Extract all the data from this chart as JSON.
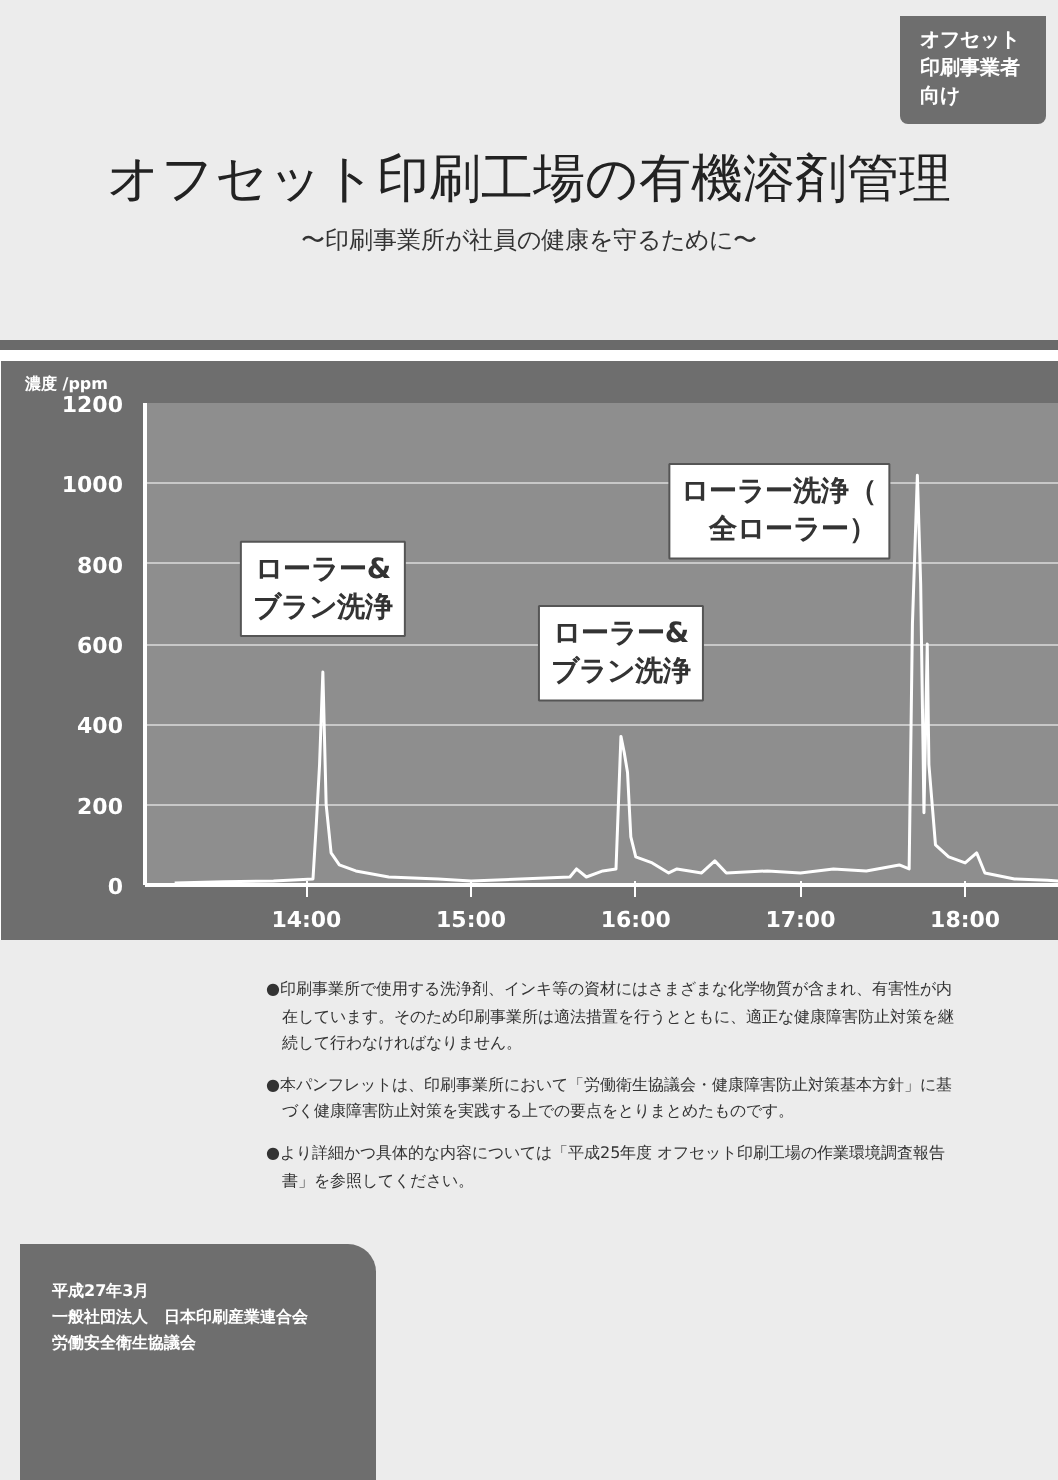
{
  "chart_data": {
    "type": "line",
    "title": "オフセット印刷工場の有機溶剤管理",
    "subtitle": "〜印刷事業所が社員の健康を守るために〜",
    "ylabel": "濃度 /ppm",
    "x": [
      13.2,
      13.5,
      13.8,
      14.04,
      14.06,
      14.08,
      14.1,
      14.12,
      14.15,
      14.2,
      14.3,
      14.5,
      14.8,
      15.0,
      15.3,
      15.6,
      15.64,
      15.7,
      15.8,
      15.88,
      15.91,
      15.93,
      15.95,
      15.97,
      16.0,
      16.1,
      16.2,
      16.25,
      16.4,
      16.48,
      16.55,
      16.8,
      17.0,
      17.2,
      17.4,
      17.6,
      17.66,
      17.68,
      17.71,
      17.73,
      17.75,
      17.77,
      17.78,
      17.82,
      17.9,
      18.0,
      18.07,
      18.12,
      18.3,
      18.5,
      18.57
    ],
    "series": [
      {
        "color": "#ffffff",
        "values": [
          5,
          8,
          10,
          15,
          150,
          300,
          530,
          200,
          80,
          50,
          35,
          20,
          15,
          10,
          15,
          20,
          40,
          20,
          35,
          40,
          370,
          330,
          280,
          120,
          70,
          55,
          30,
          40,
          30,
          60,
          30,
          35,
          30,
          40,
          35,
          50,
          40,
          650,
          1020,
          750,
          180,
          600,
          300,
          100,
          70,
          55,
          80,
          30,
          15,
          12,
          10
        ]
      }
    ],
    "xlim": [
      13.02,
      18.57
    ],
    "ylim": [
      0,
      1200
    ],
    "xticks": [
      {
        "value": 14,
        "label": "14:00"
      },
      {
        "value": 15,
        "label": "15:00"
      },
      {
        "value": 16,
        "label": "16:00"
      },
      {
        "value": 17,
        "label": "17:00"
      },
      {
        "value": 18,
        "label": "18:00"
      }
    ],
    "yticks": [
      0,
      200,
      400,
      600,
      800,
      1000,
      1200
    ],
    "grid": "y",
    "annotations": [
      "オフセット印刷事業者向け",
      {
        "text": "ローラー&ブラン洗浄",
        "x": 14.1,
        "y": 530
      },
      {
        "text": "ローラー&ブラン洗浄",
        "x": 15.91,
        "y": 370
      },
      {
        "text": "ローラー洗浄（全ローラー）",
        "x": 17.71,
        "y": 1020
      },
      "●印刷事業所で使用する洗浄剤、インキ等の資材にはさまざまな化学物質が含まれ、有害性が内在しています。そのため印刷事業所は適法措置を行うとともに、適正な健康障害防止対策を継続して行わなければなりません。",
      "●本パンフレットは、印刷事業所において「労働衛生協議会・健康障害防止対策基本方針」に基づく健康障害防止対策を実践する上での要点をとりまとめたものです。",
      "●より詳細かつ具体的な内容については「平成25年度 オフセット印刷工場の作業環境調査報告書」を参照してください。",
      "平成27年3月",
      "一般社団法人　日本印刷産業連合会",
      "労働安全衛生協議会"
    ]
  }
}
